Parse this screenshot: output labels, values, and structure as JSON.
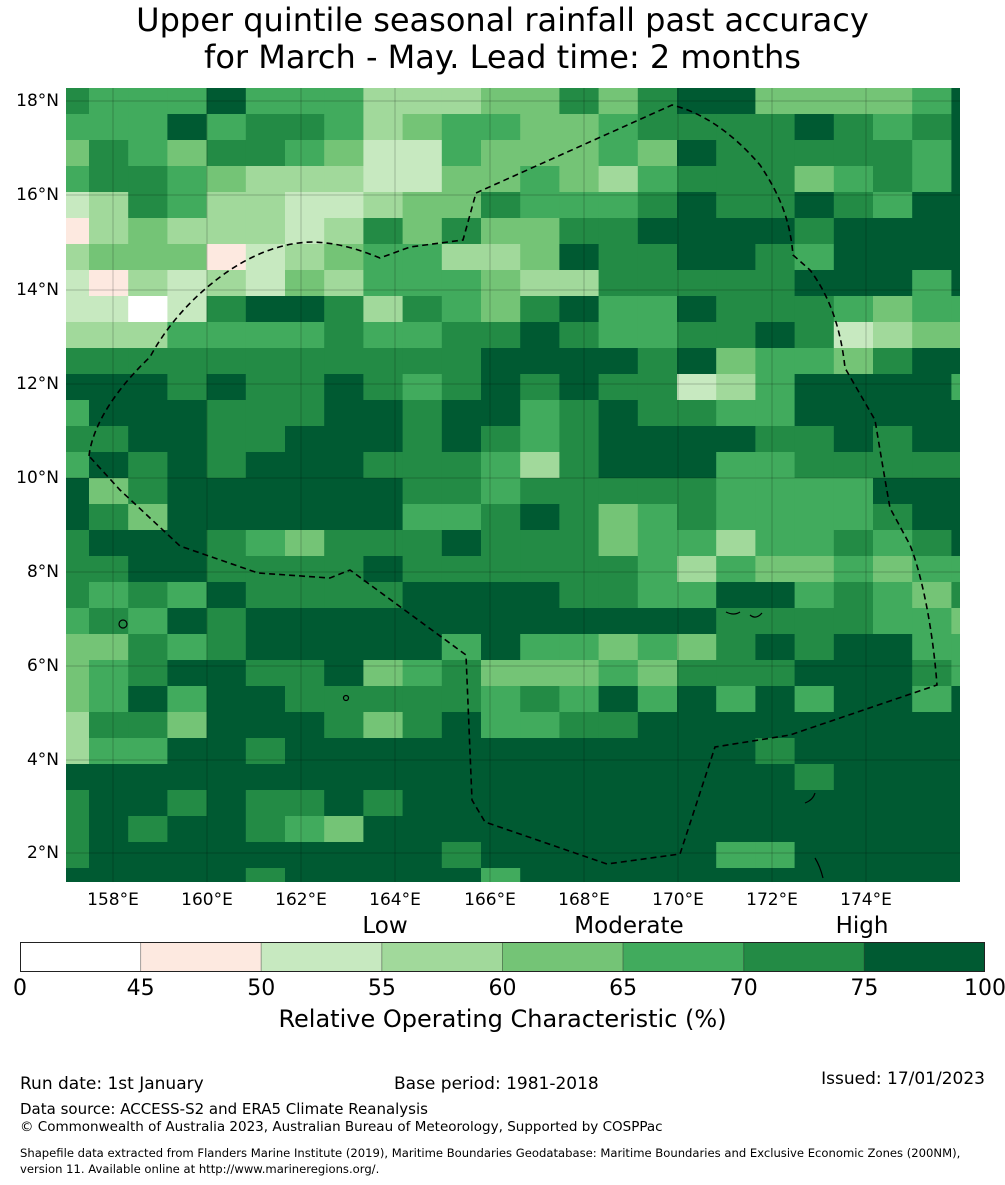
{
  "title": {
    "line1": "Upper quintile seasonal rainfall past accuracy",
    "line2": "for March - May. Lead time: 2 months"
  },
  "map": {
    "lat_labels": [
      "18°N",
      "16°N",
      "14°N",
      "12°N",
      "10°N",
      "8°N",
      "6°N",
      "4°N",
      "2°N"
    ],
    "lon_labels": [
      "158°E",
      "160°E",
      "162°E",
      "164°E",
      "166°E",
      "168°E",
      "170°E",
      "172°E",
      "174°E"
    ],
    "level_colors": [
      "#ffffff",
      "#fde9e0",
      "#c7e9c0",
      "#a1d99b",
      "#74c476",
      "#41ab5d",
      "#238b45",
      "#005a32"
    ],
    "grid_levels": [
      "655575553334464677444457",
      "555756653455445666676567",
      "465466542254445476666657",
      "566543332244543566645657",
      "236533223446555676676577",
      "134333236464466777767777",
      "344412345533476677657777",
      "213232435554336666677757",
      "220267763654675576665455",
      "333555565566765566762344",
      "666666666667777674554677",
      "777676676567676623577775",
      "577766677677567665577777",
      "667766777676567777667677",
      "576767776665367775566666",
      "746777777665666665555777",
      "764777777556764565555677",
      "677765466676664553556567",
      "667766667666666535445455",
      "656576666777766557756546",
      "565767777777777776666554",
      "446567777757554546767755",
      "456776674564445466677765",
      "457577666665657575757757",
      "366477764675566777777777",
      "355776777777777777677777",
      "777777777777777777767777",
      "677676676777777777777777",
      "676776547777777777777777",
      "677777777767777775577777",
      "777776777775777777777777"
    ]
  },
  "colorbar": {
    "categories": [
      "Low",
      "Moderate",
      "High"
    ],
    "ticks": [
      "0",
      "45",
      "50",
      "55",
      "60",
      "65",
      "70",
      "75",
      "100"
    ],
    "colors": [
      "#ffffff",
      "#fde9e0",
      "#c7e9c0",
      "#a1d99b",
      "#74c476",
      "#41ab5d",
      "#238b45",
      "#005a32"
    ],
    "label": "Relative Operating Characteristic (%)"
  },
  "footer": {
    "run_date": "Run date: 1st January",
    "base_period": "Base period: 1981-2018",
    "issued": "Issued: 17/01/2023",
    "data_source": "Data source: ACCESS-S2 and ERA5 Climate Reanalysis",
    "copyright": "© Commonwealth of Australia 2023, Australian Bureau of Meteorology, Supported by COSPPac",
    "shapefile_line1": "Shapefile data extracted from Flanders Marine Institute (2019), Maritime Boundaries Geodatabase: Maritime Boundaries and Exclusive Economic Zones (200NM),",
    "shapefile_line2": "version 11. Available online at http://www.marineregions.org/."
  }
}
